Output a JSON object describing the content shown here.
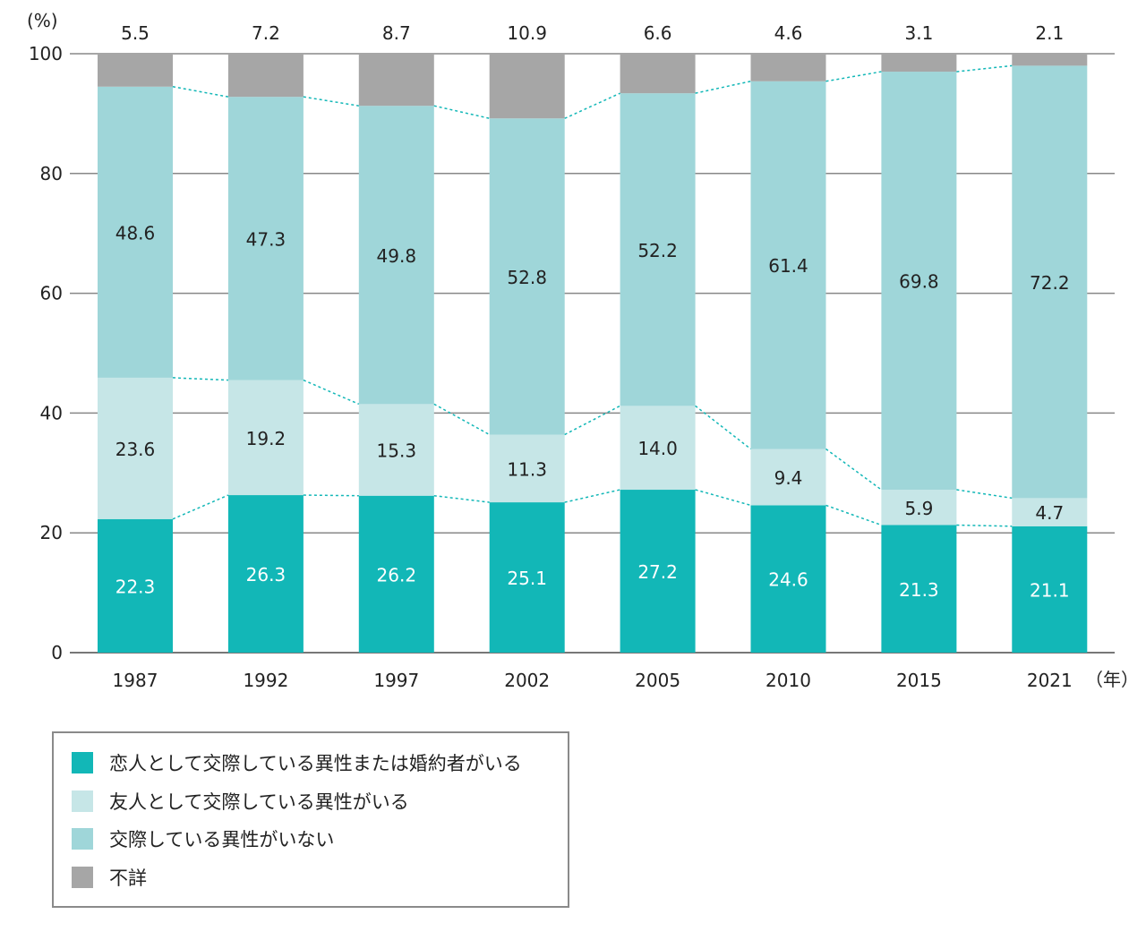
{
  "chart_data": {
    "type": "bar",
    "stacked": true,
    "y_unit_label": "(%)",
    "x_unit_label": "（年）",
    "ylim": [
      0,
      100
    ],
    "yticks": [
      0,
      20,
      40,
      60,
      80,
      100
    ],
    "grid": true,
    "legend_position": "bottom-left",
    "categories": [
      "1987",
      "1992",
      "1997",
      "2002",
      "2005",
      "2010",
      "2015",
      "2021"
    ],
    "series": [
      {
        "name": "恋人として交際している異性または婚約者がいる",
        "color": "#12b7b7",
        "values": [
          22.3,
          26.3,
          26.2,
          25.1,
          27.2,
          24.6,
          21.3,
          21.1
        ]
      },
      {
        "name": "友人として交際している異性がいる",
        "color": "#c6e6e7",
        "values": [
          23.6,
          19.2,
          15.3,
          11.3,
          14.0,
          9.4,
          5.9,
          4.7
        ]
      },
      {
        "name": "交際している異性がいない",
        "color": "#9fd6d9",
        "values": [
          48.6,
          47.3,
          49.8,
          52.8,
          52.2,
          61.4,
          69.8,
          72.2
        ]
      },
      {
        "name": "不詳",
        "color": "#a6a6a6",
        "values": [
          5.5,
          7.2,
          8.7,
          10.9,
          6.6,
          4.6,
          3.1,
          2.1
        ]
      }
    ],
    "connector_color": "#12b7b7"
  }
}
